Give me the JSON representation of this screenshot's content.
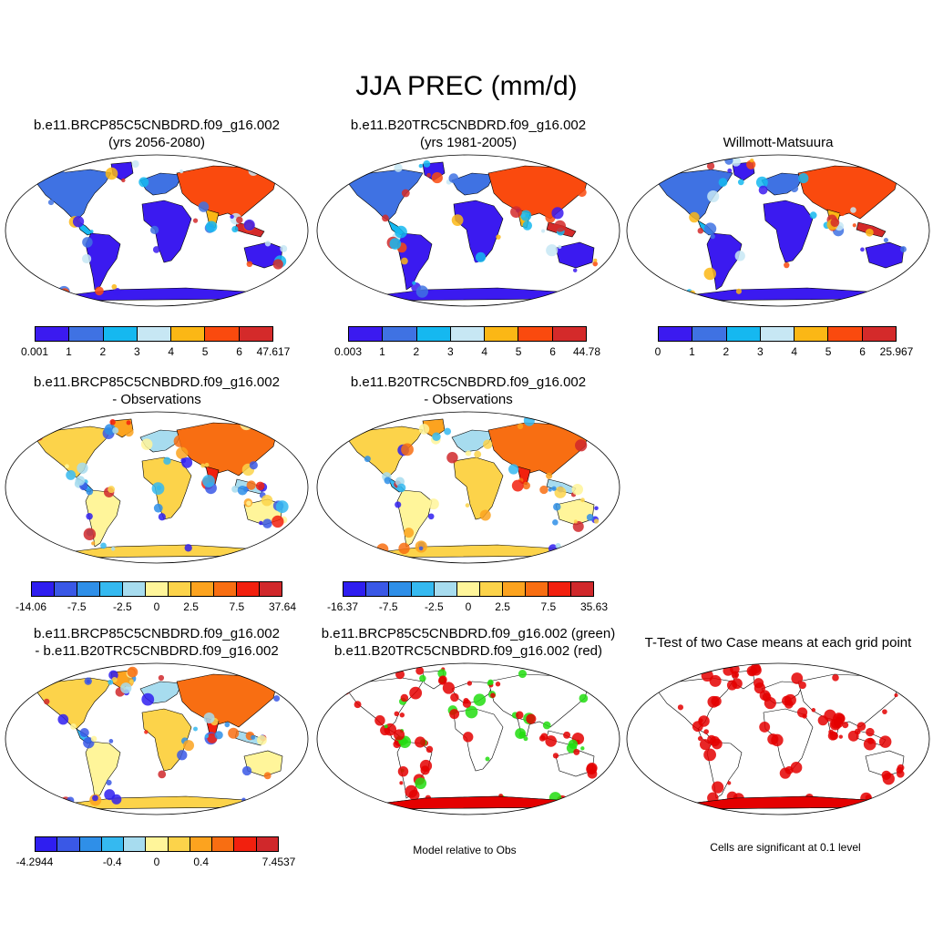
{
  "title": "JJA PREC (mm/d)",
  "colors": {
    "abs_scale": [
      "#3b1af0",
      "#3f72e3",
      "#15b8f0",
      "#c7e7f4",
      "#fbb715",
      "#fa4a0e",
      "#d42a2a"
    ],
    "diff_scale": [
      "#2f1ef0",
      "#3a58e6",
      "#2f8fe8",
      "#35b9f0",
      "#a7dcef",
      "#fff59a",
      "#fcd34a",
      "#fca31f",
      "#f86e12",
      "#f2200e",
      "#d0282b"
    ],
    "sig_red": "#e40000",
    "sig_green": "#22dd11",
    "coast": "#000000"
  },
  "panels": [
    {
      "id": "case1",
      "title": [
        "b.e11.BRCP85C5CNBDRD.f09_g16.002",
        "(yrs 2056-2080)"
      ],
      "type": "abs",
      "ticks": [
        "0.001",
        "1",
        "2",
        "3",
        "4",
        "5",
        "6",
        "47.617"
      ]
    },
    {
      "id": "case2",
      "title": [
        "b.e11.B20TRC5CNBDRD.f09_g16.002",
        "(yrs 1981-2005)"
      ],
      "type": "abs",
      "ticks": [
        "0.003",
        "1",
        "2",
        "3",
        "4",
        "5",
        "6",
        "44.78"
      ]
    },
    {
      "id": "obs",
      "title": [
        "",
        "Willmott-Matsuura"
      ],
      "type": "abs",
      "ticks": [
        "0",
        "1",
        "2",
        "3",
        "4",
        "5",
        "6",
        "25.967"
      ]
    },
    {
      "id": "case1-obs",
      "title": [
        "b.e11.BRCP85C5CNBDRD.f09_g16.002",
        "- Observations"
      ],
      "type": "diff",
      "ticks": [
        "-14.06",
        "-7.5",
        "-2.5",
        "0",
        "2.5",
        "7.5",
        "37.64"
      ]
    },
    {
      "id": "case2-obs",
      "title": [
        "b.e11.B20TRC5CNBDRD.f09_g16.002",
        "- Observations"
      ],
      "type": "diff",
      "ticks": [
        "-16.37",
        "-7.5",
        "-2.5",
        "0",
        "2.5",
        "7.5",
        "35.63"
      ]
    },
    {
      "id": "case1-case2",
      "title": [
        "b.e11.BRCP85C5CNBDRD.f09_g16.002",
        "- b.e11.B20TRC5CNBDRD.f09_g16.002"
      ],
      "type": "diff",
      "ticks": [
        "-4.2944",
        "-0.4",
        "0",
        "0.4",
        "7.4537"
      ]
    },
    {
      "id": "model-rel-obs",
      "title": [
        "b.e11.BRCP85C5CNBDRD.f09_g16.002 (green)",
        "b.e11.B20TRC5CNBDRD.f09_g16.002 (red)"
      ],
      "type": "sig2",
      "note": "Model relative to Obs"
    },
    {
      "id": "ttest",
      "title": [
        "",
        "T-Test of two Case means at each grid point"
      ],
      "type": "sig",
      "note": "Cells are significant at 0.1 level"
    }
  ]
}
